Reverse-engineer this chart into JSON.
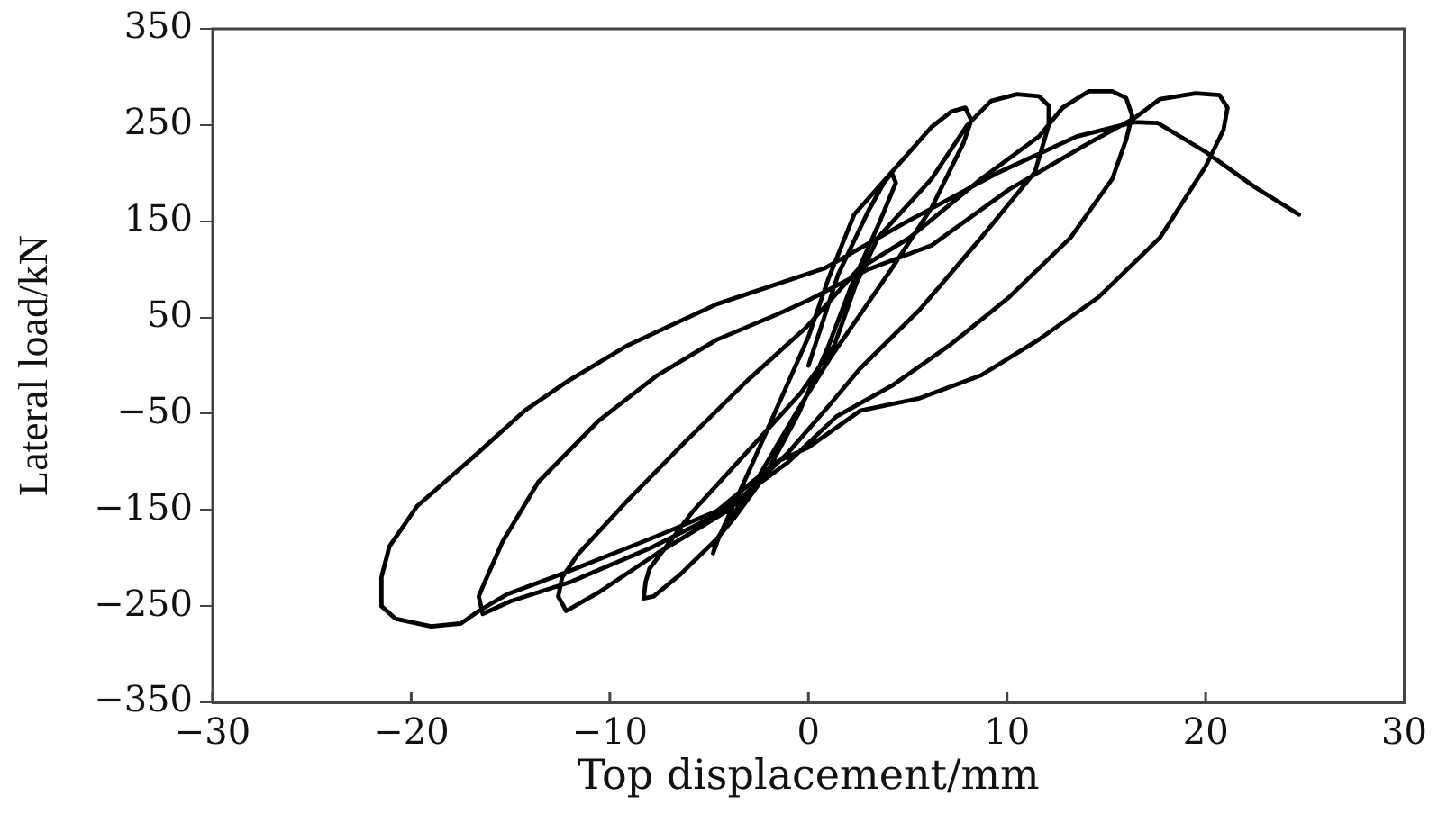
{
  "chart_data": {
    "type": "line",
    "xlabel": "Top displacement/mm",
    "ylabel": "Lateral load/kN",
    "color": "#000000",
    "marker": "none",
    "line_style": "solid",
    "xlim": [
      -30,
      30
    ],
    "ylim": [
      -350,
      350
    ],
    "xticks": [
      {
        "value": -30,
        "label": "−30"
      },
      {
        "value": -20,
        "label": "−20"
      },
      {
        "value": -10,
        "label": "−10"
      },
      0,
      10,
      20,
      30
    ],
    "yticks": [
      {
        "value": -350,
        "label": "−350"
      },
      {
        "value": -250,
        "label": "−250"
      },
      {
        "value": -150,
        "label": "−150"
      },
      {
        "value": -50,
        "label": "−50"
      },
      50,
      150,
      250,
      350
    ],
    "x": [
      0,
      1.5,
      3.0,
      3.8,
      4.2,
      4.4,
      3.6,
      2.2,
      1.0,
      -0.5,
      -2.2,
      -3.8,
      -4.6,
      -4.8,
      -4.5,
      -3.0,
      -1.5,
      0.0,
      1.0,
      2.3,
      4.2,
      6.2,
      7.2,
      7.9,
      8.2,
      7.8,
      6.2,
      4.2,
      2.6,
      1.1,
      -0.5,
      -2.5,
      -4.6,
      -6.5,
      -7.8,
      -8.3,
      -8.2,
      -8.0,
      -5.8,
      -3.1,
      -0.4,
      1.3,
      2.4,
      3.5,
      6.2,
      8.0,
      9.2,
      10.5,
      11.6,
      12.1,
      12.1,
      11.4,
      8.7,
      5.6,
      2.6,
      1.1,
      -1.0,
      -4.0,
      -7.6,
      -10.5,
      -12.2,
      -12.6,
      -12.4,
      -11.6,
      -9.1,
      -6.1,
      -3.1,
      -0.1,
      2.5,
      5.1,
      8.7,
      11.6,
      12.8,
      14.1,
      15.3,
      16.0,
      16.3,
      16.0,
      15.3,
      13.2,
      10.1,
      7.1,
      4.2,
      1.4,
      -1.0,
      -4.6,
      -8.0,
      -12.0,
      -15.0,
      -16.4,
      -16.6,
      -16.3,
      -15.4,
      -13.6,
      -10.6,
      -7.6,
      -4.6,
      -1.6,
      0.0,
      3.0,
      6.2,
      10.1,
      14.1,
      16.4,
      17.7,
      19.5,
      20.7,
      21.1,
      20.9,
      20.0,
      17.7,
      14.6,
      11.6,
      8.7,
      5.6,
      2.6,
      0.0,
      -1.6,
      -4.6,
      -7.6,
      -12.1,
      -15.2,
      -16.6,
      -17.5,
      -19.0,
      -20.8,
      -21.5,
      -21.5,
      -21.1,
      -19.7,
      -16.6,
      -14.3,
      -12.1,
      -9.1,
      -4.6,
      0.8,
      5.0,
      9.5,
      13.5,
      16.4,
      17.6,
      20.0,
      22.5,
      24.7
    ],
    "values": [
      0,
      95,
      160,
      190,
      200,
      190,
      150,
      85,
      20,
      -50,
      -115,
      -160,
      -180,
      -195,
      -178,
      -110,
      -40,
      30,
      90,
      157,
      201,
      248,
      264,
      268,
      255,
      231,
      164,
      101,
      53,
      8,
      -45,
      -115,
      -180,
      -218,
      -240,
      -242,
      -225,
      -211,
      -151,
      -90,
      -29,
      21,
      85,
      133,
      194,
      250,
      275,
      282,
      280,
      270,
      250,
      201,
      133,
      58,
      -3,
      -40,
      -90,
      -150,
      -195,
      -235,
      -255,
      -240,
      -220,
      -196,
      -140,
      -77,
      -16,
      40,
      100,
      133,
      194,
      238,
      268,
      285,
      285,
      278,
      260,
      235,
      194,
      133,
      71,
      21,
      -21,
      -53,
      -100,
      -155,
      -190,
      -225,
      -245,
      -258,
      -240,
      -225,
      -183,
      -121,
      -58,
      -10,
      27,
      53,
      68,
      100,
      125,
      183,
      231,
      257,
      277,
      283,
      281,
      268,
      245,
      207,
      133,
      71,
      27,
      -10,
      -34,
      -47,
      -85,
      -100,
      -151,
      -177,
      -214,
      -238,
      -255,
      -268,
      -271,
      -263,
      -250,
      -220,
      -188,
      -146,
      -90,
      -47,
      -16,
      21,
      64,
      101,
      150,
      200,
      238,
      253,
      252,
      222,
      185,
      157
    ]
  }
}
